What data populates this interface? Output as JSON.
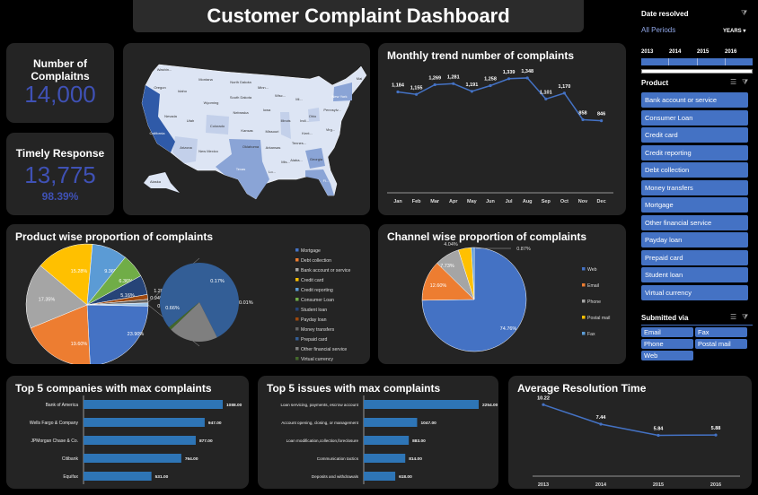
{
  "title": "Customer Complaint Dashboard",
  "kpis": {
    "complaints_label": "Number of Complaitns",
    "complaints_value": "14,000",
    "timely_label": "Timely Response",
    "timely_value": "13,775",
    "timely_pct": "98.39%"
  },
  "map": {
    "labels": [
      "Washin...",
      "Montana",
      "North Dakota",
      "Minn...",
      "Mai",
      "Oregon",
      "Idaho",
      "South Dakota",
      "Wisc...",
      "Mi...",
      "New York",
      "Wyoming",
      "Nebraska",
      "Iowa",
      "Pennsylv...",
      "Nevada",
      "Utah",
      "Illinois",
      "Indi...",
      "Ohio",
      "Colorado",
      "Kansas",
      "Missouri",
      "Kent...",
      "Virg...",
      "California",
      "Tennes...",
      "Arizona",
      "New Mexico",
      "Oklahoma",
      "Arkansas",
      "Mis...",
      "Alaba...",
      "Georgia",
      "Texas",
      "Lo...",
      "Fl...",
      "Alaska"
    ],
    "colors": {
      "base": "#dde5f4",
      "light": "#c3d0ea",
      "mid": "#8aa4d6",
      "dark": "#2f5aa8"
    }
  },
  "chart_data": [
    {
      "id": "monthly",
      "type": "line",
      "title": "Monthly trend number of complaints",
      "categories": [
        "Jan",
        "Feb",
        "Mar",
        "Apr",
        "May",
        "Jun",
        "Jul",
        "Aug",
        "Sep",
        "Oct",
        "Nov",
        "Dec"
      ],
      "values": [
        1184,
        1155,
        1269,
        1281,
        1191,
        1258,
        1339,
        1348,
        1101,
        1170,
        858,
        846
      ],
      "labels": [
        "1,184",
        "1,155",
        "1,269",
        "1,281",
        "1,191",
        "1,258",
        "1,339",
        "1,348",
        "1,101",
        "1,170",
        "858",
        "846"
      ],
      "color": "#4472c4",
      "grid": false
    },
    {
      "id": "product",
      "type": "pie",
      "title": "Product wise proportion of complaints",
      "categories": [
        "Mortgage",
        "Debt collection",
        "Bank account or service",
        "Credit card",
        "Credit reporting",
        "Consumer Loan",
        "Student loan",
        "Payday loan",
        "Money transfers",
        "Prepaid card",
        "Other financial service",
        "Virtual currency"
      ],
      "values": [
        23.9,
        19.6,
        17.35,
        15.28,
        9.36,
        6.36,
        5.16,
        1.28,
        0.94,
        0.66,
        0.17,
        0.01
      ],
      "labels": [
        "23.90%",
        "19.60%",
        "17.35%",
        "15.28%",
        "9.36%",
        "6.36%",
        "5.16%",
        "1.28%",
        "0.94%",
        "0.66%",
        "0.17%",
        "0.01%"
      ],
      "other_label": "0.84%",
      "colors": [
        "#4472c4",
        "#ed7d31",
        "#a5a5a5",
        "#ffc000",
        "#5b9bd5",
        "#70ad47",
        "#264478",
        "#9e480e",
        "#636363",
        "#335e96",
        "#7f7f7f",
        "#43682b"
      ],
      "legend": "right",
      "secondary_pie": [
        "Prepaid card",
        "Other financial service",
        "Virtual currency"
      ]
    },
    {
      "id": "channel",
      "type": "pie",
      "title": "Channel wise proportion of complaints",
      "categories": [
        "Web",
        "Email",
        "Phone",
        "Postal mail",
        "Fax"
      ],
      "values": [
        74.76,
        12.6,
        7.73,
        4.04,
        0.87
      ],
      "labels": [
        "74.76%",
        "12.60%",
        "7.73%",
        "4.04%",
        "0.87%"
      ],
      "colors": [
        "#4472c4",
        "#ed7d31",
        "#a5a5a5",
        "#ffc000",
        "#5b9bd5"
      ],
      "legend": "right"
    },
    {
      "id": "companies",
      "type": "bar",
      "orientation": "horizontal",
      "title": "Top 5 companies with max complaints",
      "categories": [
        "Bank of America",
        "Wells Fargo & Company",
        "JPMorgan Chase & Co.",
        "Citibank",
        "Equifax"
      ],
      "values": [
        1088,
        947,
        877,
        764,
        531
      ],
      "labels": [
        "1088.00",
        "947.00",
        "877.00",
        "764.00",
        "531.00"
      ],
      "color": "#2e75b6"
    },
    {
      "id": "issues",
      "type": "bar",
      "orientation": "horizontal",
      "title": "Top 5 issues with max complaints",
      "categories": [
        "Loan servicing, payments, escrow account",
        "Account opening, closing, or management",
        "Loan modification,collection,foreclosure",
        "Communication tactics",
        "Deposits and withdrawals"
      ],
      "values": [
        2254,
        1047,
        883,
        814,
        618
      ],
      "labels": [
        "2254.00",
        "1047.00",
        "883.00",
        "814.00",
        "618.00"
      ],
      "color": "#2e75b6"
    },
    {
      "id": "resolution",
      "type": "line",
      "title": "Average Resolution Time",
      "categories": [
        "2013",
        "2014",
        "2015",
        "2016"
      ],
      "values": [
        10.22,
        7.44,
        5.84,
        5.88
      ],
      "labels": [
        "10.22",
        "7.44",
        "5.84",
        "5.88"
      ],
      "color": "#4472c4",
      "grid": false
    }
  ],
  "slicers": {
    "date": {
      "title": "Date resolved",
      "selection": "All Periods",
      "level": "YEARS",
      "years": [
        "2013",
        "2014",
        "2015",
        "2016"
      ]
    },
    "product": {
      "title": "Product",
      "items": [
        "Bank account or service",
        "Consumer Loan",
        "Credit card",
        "Credit reporting",
        "Debt collection",
        "Money transfers",
        "Mortgage",
        "Other financial service",
        "Payday loan",
        "Prepaid card",
        "Student loan",
        "Virtual currency"
      ]
    },
    "submitted": {
      "title": "Submitted via",
      "items": [
        "Email",
        "Fax",
        "Phone",
        "Postal mail",
        "Web"
      ]
    }
  },
  "icons": {
    "multi_select": "multi-select-icon",
    "clear_filter": "clear-filter-icon",
    "dropdown": "chevron-down-icon"
  }
}
